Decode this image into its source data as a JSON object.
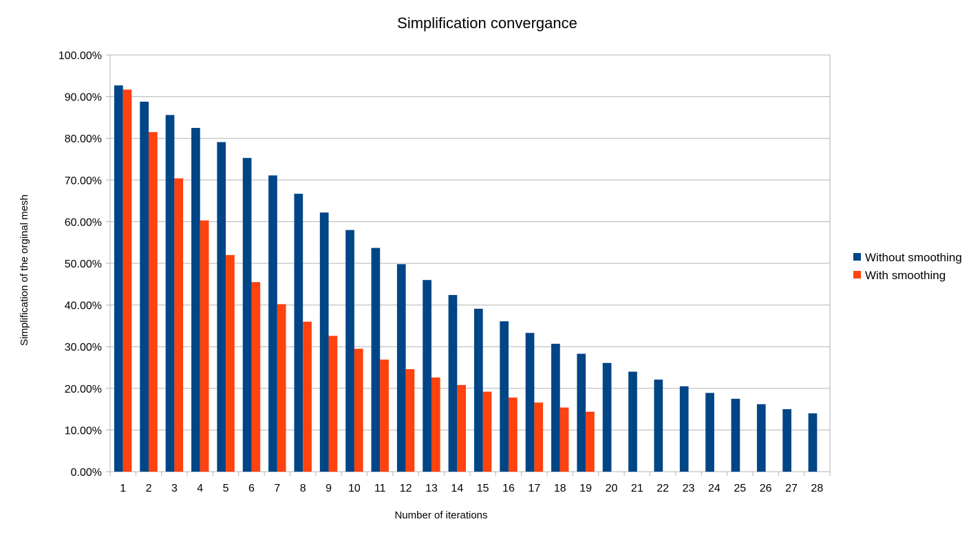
{
  "chart_data": {
    "type": "bar",
    "title": "Simplification convergance",
    "xlabel": "Number of iterations",
    "ylabel": "Simplification of the orginal mesh",
    "ylim": [
      0,
      1
    ],
    "y_tick_labels": [
      "0.00%",
      "10.00%",
      "20.00%",
      "30.00%",
      "40.00%",
      "50.00%",
      "60.00%",
      "70.00%",
      "80.00%",
      "90.00%",
      "100.00%"
    ],
    "grid": true,
    "legend_position": "right",
    "categories": [
      "1",
      "2",
      "3",
      "4",
      "5",
      "6",
      "7",
      "8",
      "9",
      "10",
      "11",
      "12",
      "13",
      "14",
      "15",
      "16",
      "17",
      "18",
      "19",
      "20",
      "21",
      "22",
      "23",
      "24",
      "25",
      "26",
      "27",
      "28"
    ],
    "series": [
      {
        "name": "Without smoothing",
        "color": "#004586",
        "values": [
          0.927,
          0.888,
          0.856,
          0.825,
          0.791,
          0.753,
          0.711,
          0.667,
          0.622,
          0.58,
          0.537,
          0.498,
          0.46,
          0.424,
          0.391,
          0.361,
          0.333,
          0.307,
          0.283,
          0.261,
          0.24,
          0.221,
          0.205,
          0.189,
          0.175,
          0.162,
          0.15,
          0.14
        ]
      },
      {
        "name": "With smoothing",
        "color": "#ff420e",
        "values": [
          0.917,
          0.815,
          0.704,
          0.603,
          0.52,
          0.455,
          0.402,
          0.36,
          0.326,
          0.295,
          0.269,
          0.246,
          0.226,
          0.208,
          0.192,
          0.178,
          0.166,
          0.154,
          0.144,
          null,
          null,
          null,
          null,
          null,
          null,
          null,
          null,
          null
        ]
      }
    ]
  }
}
